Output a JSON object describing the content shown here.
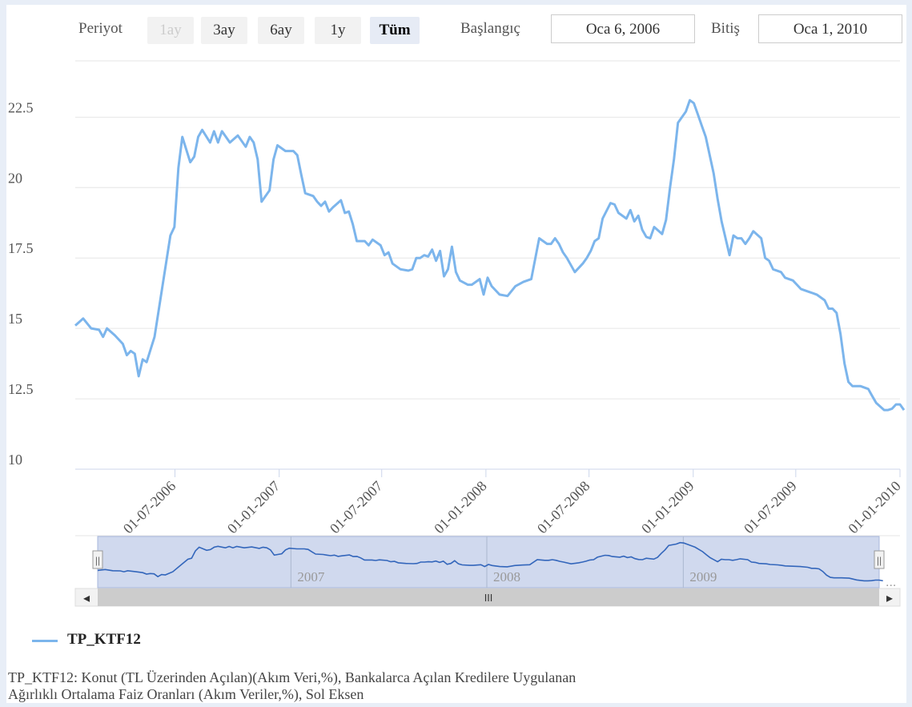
{
  "toolbar": {
    "period_label": "Periyot",
    "periods": [
      "1ay",
      "3ay",
      "6ay",
      "1y",
      "Tüm"
    ],
    "active_period": "Tüm",
    "disabled_period": "1ay",
    "start_label": "Başlangıç",
    "start_value": "Oca 6, 2006",
    "end_label": "Bitiş",
    "end_value": "Oca 1, 2010"
  },
  "chart_data": {
    "type": "line",
    "x_type": "datetime",
    "xlim": [
      "2006-01-06",
      "2010-01-01"
    ],
    "ylim": [
      10,
      24.5
    ],
    "y_ticks": [
      "10",
      "12.5",
      "15",
      "17.5",
      "20",
      "22.5"
    ],
    "x_ticks": [
      "01-07-2006",
      "01-01-2007",
      "01-07-2007",
      "01-01-2008",
      "01-07-2008",
      "01-01-2009",
      "01-07-2009",
      "01-01-2010"
    ],
    "navigator_labels": [
      "2007",
      "2008",
      "2009"
    ],
    "grid": true,
    "color": "#7cb5ec",
    "series": [
      {
        "name": "TP_KTF12",
        "points": [
          [
            "2006-01-06",
            15.1
          ],
          [
            "2006-01-20",
            15.35
          ],
          [
            "2006-02-03",
            15.0
          ],
          [
            "2006-02-17",
            14.95
          ],
          [
            "2006-02-24",
            14.7
          ],
          [
            "2006-03-03",
            15.0
          ],
          [
            "2006-03-17",
            14.75
          ],
          [
            "2006-03-31",
            14.45
          ],
          [
            "2006-04-07",
            14.05
          ],
          [
            "2006-04-14",
            14.2
          ],
          [
            "2006-04-21",
            14.1
          ],
          [
            "2006-04-28",
            13.3
          ],
          [
            "2006-05-05",
            13.9
          ],
          [
            "2006-05-12",
            13.8
          ],
          [
            "2006-05-26",
            14.7
          ],
          [
            "2006-06-09",
            16.5
          ],
          [
            "2006-06-23",
            18.3
          ],
          [
            "2006-06-30",
            18.6
          ],
          [
            "2006-07-07",
            20.7
          ],
          [
            "2006-07-14",
            21.8
          ],
          [
            "2006-07-28",
            20.9
          ],
          [
            "2006-08-04",
            21.1
          ],
          [
            "2006-08-11",
            21.8
          ],
          [
            "2006-08-18",
            22.05
          ],
          [
            "2006-09-01",
            21.6
          ],
          [
            "2006-09-08",
            22.0
          ],
          [
            "2006-09-15",
            21.6
          ],
          [
            "2006-09-22",
            22.0
          ],
          [
            "2006-10-06",
            21.6
          ],
          [
            "2006-10-20",
            21.85
          ],
          [
            "2006-11-03",
            21.45
          ],
          [
            "2006-11-10",
            21.8
          ],
          [
            "2006-11-17",
            21.6
          ],
          [
            "2006-11-24",
            21.0
          ],
          [
            "2006-12-01",
            19.5
          ],
          [
            "2006-12-15",
            19.9
          ],
          [
            "2006-12-22",
            21.0
          ],
          [
            "2006-12-29",
            21.5
          ],
          [
            "2007-01-12",
            21.3
          ],
          [
            "2007-01-26",
            21.3
          ],
          [
            "2007-02-02",
            21.15
          ],
          [
            "2007-02-09",
            20.45
          ],
          [
            "2007-02-16",
            19.8
          ],
          [
            "2007-03-02",
            19.7
          ],
          [
            "2007-03-09",
            19.5
          ],
          [
            "2007-03-16",
            19.35
          ],
          [
            "2007-03-23",
            19.5
          ],
          [
            "2007-03-30",
            19.15
          ],
          [
            "2007-04-06",
            19.3
          ],
          [
            "2007-04-20",
            19.55
          ],
          [
            "2007-04-27",
            19.1
          ],
          [
            "2007-05-04",
            19.15
          ],
          [
            "2007-05-11",
            18.7
          ],
          [
            "2007-05-18",
            18.1
          ],
          [
            "2007-06-01",
            18.1
          ],
          [
            "2007-06-08",
            17.95
          ],
          [
            "2007-06-15",
            18.15
          ],
          [
            "2007-06-29",
            17.95
          ],
          [
            "2007-07-06",
            17.6
          ],
          [
            "2007-07-13",
            17.7
          ],
          [
            "2007-07-20",
            17.3
          ],
          [
            "2007-08-03",
            17.1
          ],
          [
            "2007-08-17",
            17.05
          ],
          [
            "2007-08-24",
            17.1
          ],
          [
            "2007-08-31",
            17.5
          ],
          [
            "2007-09-07",
            17.5
          ],
          [
            "2007-09-14",
            17.6
          ],
          [
            "2007-09-21",
            17.55
          ],
          [
            "2007-09-28",
            17.8
          ],
          [
            "2007-10-05",
            17.4
          ],
          [
            "2007-10-12",
            17.75
          ],
          [
            "2007-10-19",
            16.85
          ],
          [
            "2007-10-26",
            17.1
          ],
          [
            "2007-11-02",
            17.9
          ],
          [
            "2007-11-09",
            17.0
          ],
          [
            "2007-11-16",
            16.7
          ],
          [
            "2007-11-30",
            16.55
          ],
          [
            "2007-12-07",
            16.55
          ],
          [
            "2007-12-21",
            16.75
          ],
          [
            "2007-12-28",
            16.2
          ],
          [
            "2008-01-04",
            16.8
          ],
          [
            "2008-01-11",
            16.5
          ],
          [
            "2008-01-25",
            16.2
          ],
          [
            "2008-02-08",
            16.15
          ],
          [
            "2008-02-22",
            16.5
          ],
          [
            "2008-03-07",
            16.65
          ],
          [
            "2008-03-21",
            16.75
          ],
          [
            "2008-04-04",
            18.2
          ],
          [
            "2008-04-18",
            18.0
          ],
          [
            "2008-04-25",
            18.0
          ],
          [
            "2008-05-02",
            18.2
          ],
          [
            "2008-05-09",
            18.0
          ],
          [
            "2008-05-16",
            17.7
          ],
          [
            "2008-05-23",
            17.5
          ],
          [
            "2008-06-06",
            17.0
          ],
          [
            "2008-06-20",
            17.3
          ],
          [
            "2008-06-27",
            17.5
          ],
          [
            "2008-07-04",
            17.75
          ],
          [
            "2008-07-11",
            18.1
          ],
          [
            "2008-07-18",
            18.2
          ],
          [
            "2008-07-25",
            18.9
          ],
          [
            "2008-08-08",
            19.45
          ],
          [
            "2008-08-15",
            19.4
          ],
          [
            "2008-08-22",
            19.1
          ],
          [
            "2008-09-05",
            18.9
          ],
          [
            "2008-09-12",
            19.2
          ],
          [
            "2008-09-19",
            18.8
          ],
          [
            "2008-09-26",
            19.0
          ],
          [
            "2008-10-03",
            18.5
          ],
          [
            "2008-10-10",
            18.25
          ],
          [
            "2008-10-17",
            18.2
          ],
          [
            "2008-10-24",
            18.6
          ],
          [
            "2008-11-07",
            18.35
          ],
          [
            "2008-11-14",
            18.85
          ],
          [
            "2008-11-21",
            20.0
          ],
          [
            "2008-11-28",
            21.0
          ],
          [
            "2008-12-05",
            22.3
          ],
          [
            "2008-12-19",
            22.7
          ],
          [
            "2008-12-26",
            23.1
          ],
          [
            "2009-01-02",
            23.0
          ],
          [
            "2009-01-09",
            22.6
          ],
          [
            "2009-01-16",
            22.2
          ],
          [
            "2009-01-23",
            21.8
          ],
          [
            "2009-02-06",
            20.5
          ],
          [
            "2009-02-13",
            19.6
          ],
          [
            "2009-02-20",
            18.8
          ],
          [
            "2009-03-06",
            17.6
          ],
          [
            "2009-03-13",
            18.3
          ],
          [
            "2009-03-20",
            18.2
          ],
          [
            "2009-03-27",
            18.2
          ],
          [
            "2009-04-03",
            18.0
          ],
          [
            "2009-04-10",
            18.2
          ],
          [
            "2009-04-17",
            18.45
          ],
          [
            "2009-05-01",
            18.2
          ],
          [
            "2009-05-08",
            17.5
          ],
          [
            "2009-05-15",
            17.4
          ],
          [
            "2009-05-22",
            17.1
          ],
          [
            "2009-06-05",
            17.0
          ],
          [
            "2009-06-12",
            16.8
          ],
          [
            "2009-06-26",
            16.7
          ],
          [
            "2009-07-03",
            16.55
          ],
          [
            "2009-07-10",
            16.4
          ],
          [
            "2009-07-24",
            16.3
          ],
          [
            "2009-08-07",
            16.2
          ],
          [
            "2009-08-21",
            16.0
          ],
          [
            "2009-08-28",
            15.7
          ],
          [
            "2009-09-04",
            15.7
          ],
          [
            "2009-09-11",
            15.55
          ],
          [
            "2009-09-18",
            14.8
          ],
          [
            "2009-09-25",
            13.75
          ],
          [
            "2009-10-02",
            13.1
          ],
          [
            "2009-10-09",
            12.95
          ],
          [
            "2009-10-23",
            12.95
          ],
          [
            "2009-11-06",
            12.85
          ],
          [
            "2009-11-13",
            12.6
          ],
          [
            "2009-11-20",
            12.35
          ],
          [
            "2009-12-04",
            12.1
          ],
          [
            "2009-12-11",
            12.1
          ],
          [
            "2009-12-18",
            12.15
          ],
          [
            "2009-12-25",
            12.3
          ],
          [
            "2010-01-01",
            12.3
          ],
          [
            "2010-01-08",
            12.1
          ]
        ]
      }
    ]
  },
  "legend": {
    "label": "TP_KTF12"
  },
  "caption": {
    "line1": "TP_KTF12: Konut (TL Üzerinden Açılan)(Akım Veri,%), Bankalarca Açılan Kredilere Uygulanan",
    "line2": "Ağırlıklı Ortalama Faiz Oranları (Akım Veriler,%), Sol Eksen"
  },
  "icons": {
    "scroll_left": "left-arrow-icon",
    "scroll_right": "right-arrow-icon",
    "grip": "grip-icon",
    "more": "ellipsis-icon",
    "arrow_left_glyph": "◂",
    "arrow_right_glyph": "▸",
    "grip_glyph": "III",
    "handle_glyph": "||",
    "more_glyph": "..."
  }
}
